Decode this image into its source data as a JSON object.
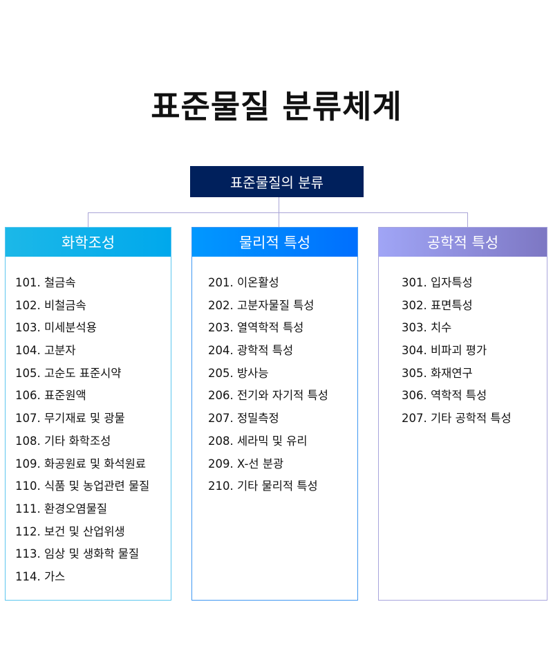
{
  "title": "표준물질 분류체계",
  "root": "표준물질의 분류",
  "colors": {
    "root": "#00205c",
    "col1": "#00a8ec",
    "col2": "#0070ff",
    "col3": "#7f78c4",
    "connector": "#a9a4d6"
  },
  "columns": [
    {
      "header": "화학조성",
      "items": [
        "101. 철금속",
        "102. 비철금속",
        "103. 미세분석용",
        "104. 고분자",
        "105. 고순도 표준시약",
        "106. 표준원액",
        "107. 무기재료 및 광물",
        "108. 기타 화학조성",
        "109. 화공원료 및 화석원료",
        "110. 식품 및 농업관련 물질",
        "111. 환경오염물질",
        "112. 보건 및 산업위생",
        "113. 임상 및 생화학 물질",
        "114. 가스"
      ]
    },
    {
      "header": "물리적 특성",
      "items": [
        "201. 이온활성",
        "202. 고분자물질 특성",
        "203. 열역학적 특성",
        "204. 광학적 특성",
        "205. 방사능",
        "206. 전기와 자기적 특성",
        "207. 정밀측정",
        "208. 세라믹 및 유리",
        "209. X-선 분광",
        "210. 기타 물리적 특성"
      ]
    },
    {
      "header": "공학적 특성",
      "items": [
        "301. 입자특성",
        "302. 표면특성",
        "303. 치수",
        "304. 비파괴 평가",
        "305. 화재연구",
        "306. 역학적 특성",
        "207. 기타 공학적 특성"
      ]
    }
  ]
}
